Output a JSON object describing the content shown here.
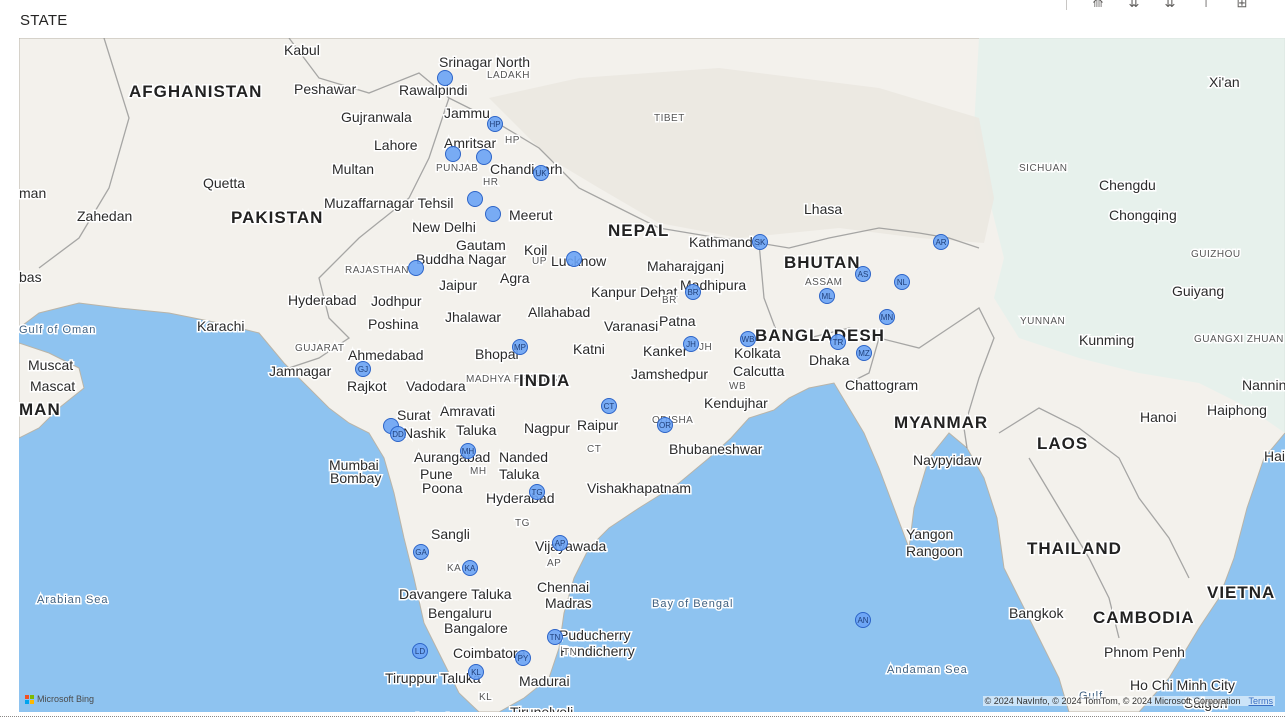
{
  "visual": {
    "title": "STATE"
  },
  "toolbar": {
    "icons": [
      "drill-up-icon",
      "drill-down-icon",
      "expand-all-icon",
      "pin-icon",
      "focus-mode-icon"
    ],
    "glyphs": [
      "⟰",
      "⇊",
      "⇊",
      "⊤",
      "⊞"
    ]
  },
  "map": {
    "water_color": "#8ec3f0",
    "land_color": "#f3f1ec",
    "marker_color": "#6aa3f5",
    "marker_stroke": "#2c64c8",
    "labels": [
      {
        "text": "Kabul",
        "kind": "city"
      },
      {
        "text": "Srinagar North",
        "kind": "city"
      },
      {
        "text": "LADAKH",
        "kind": "region"
      },
      {
        "text": "AFGHANISTAN",
        "kind": "country"
      },
      {
        "text": "Peshawar",
        "kind": "city"
      },
      {
        "text": "Rawalpindi",
        "kind": "city"
      },
      {
        "text": "Jammu",
        "kind": "city"
      },
      {
        "text": "Gujranwala",
        "kind": "city"
      },
      {
        "text": "Lahore",
        "kind": "city"
      },
      {
        "text": "Amritsar",
        "kind": "city"
      },
      {
        "text": "HP",
        "kind": "region"
      },
      {
        "text": "TIBET",
        "kind": "region"
      },
      {
        "text": "Xi'an",
        "kind": "city"
      },
      {
        "text": "Multan",
        "kind": "city"
      },
      {
        "text": "PUNJAB",
        "kind": "region"
      },
      {
        "text": "Chandigarh",
        "kind": "city"
      },
      {
        "text": "HR",
        "kind": "region"
      },
      {
        "text": "SICHUAN",
        "kind": "region"
      },
      {
        "text": "Chengdu",
        "kind": "city"
      },
      {
        "text": "man",
        "kind": "city"
      },
      {
        "text": "Quetta",
        "kind": "city"
      },
      {
        "text": "Muzaffarnagar Tehsil",
        "kind": "city"
      },
      {
        "text": "Lhasa",
        "kind": "city"
      },
      {
        "text": "Chongqing",
        "kind": "city"
      },
      {
        "text": "Zahedan",
        "kind": "city"
      },
      {
        "text": "PAKISTAN",
        "kind": "country"
      },
      {
        "text": "New Delhi",
        "kind": "city"
      },
      {
        "text": "Meerut",
        "kind": "city"
      },
      {
        "text": "NEPAL",
        "kind": "country"
      },
      {
        "text": "Kathmandu",
        "kind": "city"
      },
      {
        "text": "Gautam",
        "kind": "city"
      },
      {
        "text": "Koil",
        "kind": "city"
      },
      {
        "text": "Buddha Nagar",
        "kind": "city"
      },
      {
        "text": "UP",
        "kind": "region"
      },
      {
        "text": "Lucknow",
        "kind": "city"
      },
      {
        "text": "BHUTAN",
        "kind": "country"
      },
      {
        "text": "GUIZHOU",
        "kind": "region"
      },
      {
        "text": "bas",
        "kind": "city"
      },
      {
        "text": "RAJASTHAN",
        "kind": "region"
      },
      {
        "text": "Maharajganj",
        "kind": "city"
      },
      {
        "text": "Jaipur",
        "kind": "city"
      },
      {
        "text": "Agra",
        "kind": "city"
      },
      {
        "text": "Madhipura",
        "kind": "city"
      },
      {
        "text": "ASSAM",
        "kind": "region"
      },
      {
        "text": "Guiyang",
        "kind": "city"
      },
      {
        "text": "Hyderabad",
        "kind": "city"
      },
      {
        "text": "Jodhpur",
        "kind": "city"
      },
      {
        "text": "Kanpur Dehat",
        "kind": "city"
      },
      {
        "text": "BR",
        "kind": "region"
      },
      {
        "text": "Allahabad",
        "kind": "city"
      },
      {
        "text": "Gulf of Oman",
        "kind": "water"
      },
      {
        "text": "Karachi",
        "kind": "city"
      },
      {
        "text": "Poshina",
        "kind": "city"
      },
      {
        "text": "Jhalawar",
        "kind": "city"
      },
      {
        "text": "Varanasi",
        "kind": "city"
      },
      {
        "text": "Patna",
        "kind": "city"
      },
      {
        "text": "YUNNAN",
        "kind": "region"
      },
      {
        "text": "Kunming",
        "kind": "city"
      },
      {
        "text": "BANGLADESH",
        "kind": "country"
      },
      {
        "text": "GUANGXI ZHUAN",
        "kind": "region"
      },
      {
        "text": "GUJARAT",
        "kind": "region"
      },
      {
        "text": "Bhopal",
        "kind": "city"
      },
      {
        "text": "Katni",
        "kind": "city"
      },
      {
        "text": "Kanker",
        "kind": "city"
      },
      {
        "text": "JH",
        "kind": "region"
      },
      {
        "text": "Muscat",
        "kind": "city"
      },
      {
        "text": "Ahmedabad",
        "kind": "city"
      },
      {
        "text": "Dhaka",
        "kind": "city"
      },
      {
        "text": "Kolkata",
        "kind": "city"
      },
      {
        "text": "Calcutta",
        "kind": "city"
      },
      {
        "text": "Mascat",
        "kind": "city"
      },
      {
        "text": "Jamnagar",
        "kind": "city"
      },
      {
        "text": "MADHYA PRADESH",
        "kind": "region"
      },
      {
        "text": "INDIA",
        "kind": "country"
      },
      {
        "text": "Jamshedpur",
        "kind": "city"
      },
      {
        "text": "Nanning",
        "kind": "city"
      },
      {
        "text": "Rajkot",
        "kind": "city"
      },
      {
        "text": "Vadodara",
        "kind": "city"
      },
      {
        "text": "WB",
        "kind": "region"
      },
      {
        "text": "Chattogram",
        "kind": "city"
      },
      {
        "text": "MAN",
        "kind": "country"
      },
      {
        "text": "Kendujhar",
        "kind": "city"
      },
      {
        "text": "Hanoi",
        "kind": "city"
      },
      {
        "text": "Haiphong",
        "kind": "city"
      },
      {
        "text": "Surat",
        "kind": "city"
      },
      {
        "text": "Amravati",
        "kind": "city"
      },
      {
        "text": "Raipur",
        "kind": "city"
      },
      {
        "text": "MYANMAR",
        "kind": "country"
      },
      {
        "text": "LAOS",
        "kind": "country"
      },
      {
        "text": "Nashik",
        "kind": "city"
      },
      {
        "text": "Taluka",
        "kind": "city"
      },
      {
        "text": "Nagpur",
        "kind": "city"
      },
      {
        "text": "ODISHA",
        "kind": "region"
      },
      {
        "text": "Bhubaneshwar",
        "kind": "city"
      },
      {
        "text": "CT",
        "kind": "region"
      },
      {
        "text": "Haiko",
        "kind": "city"
      },
      {
        "text": "Aurangabad",
        "kind": "city"
      },
      {
        "text": "Nanded",
        "kind": "city"
      },
      {
        "text": "Naypyidaw",
        "kind": "city"
      },
      {
        "text": "Mumbai",
        "kind": "city"
      },
      {
        "text": "Bombay",
        "kind": "city"
      },
      {
        "text": "MH",
        "kind": "region"
      },
      {
        "text": "Taluka",
        "kind": "city"
      },
      {
        "text": "Pune",
        "kind": "city"
      },
      {
        "text": "Poona",
        "kind": "city"
      },
      {
        "text": "Vishakhapatnam",
        "kind": "city"
      },
      {
        "text": "Hyderabad",
        "kind": "city"
      },
      {
        "text": "TG",
        "kind": "region"
      },
      {
        "text": "Sangli",
        "kind": "city"
      },
      {
        "text": "Yangon",
        "kind": "city"
      },
      {
        "text": "Rangoon",
        "kind": "city"
      },
      {
        "text": "THAILAND",
        "kind": "country"
      },
      {
        "text": "Vijayawada",
        "kind": "city"
      },
      {
        "text": "AP",
        "kind": "region"
      },
      {
        "text": "KA",
        "kind": "region"
      },
      {
        "text": "VIETNA",
        "kind": "country"
      },
      {
        "text": "Chennai",
        "kind": "city"
      },
      {
        "text": "Madras",
        "kind": "city"
      },
      {
        "text": "Arabian Sea",
        "kind": "water"
      },
      {
        "text": "Davangere Taluka",
        "kind": "city"
      },
      {
        "text": "Bay of Bengal",
        "kind": "water"
      },
      {
        "text": "Bengaluru",
        "kind": "city"
      },
      {
        "text": "Bangkok",
        "kind": "city"
      },
      {
        "text": "CAMBODIA",
        "kind": "country"
      },
      {
        "text": "Bangalore",
        "kind": "city"
      },
      {
        "text": "Puducherry",
        "kind": "city"
      },
      {
        "text": "Pondicherry",
        "kind": "city"
      },
      {
        "text": "Coimbatore",
        "kind": "city"
      },
      {
        "text": "TN",
        "kind": "region"
      },
      {
        "text": "Phnom Penh",
        "kind": "city"
      },
      {
        "text": "Andaman Sea",
        "kind": "water"
      },
      {
        "text": "Tiruppur Taluka",
        "kind": "city"
      },
      {
        "text": "Madurai",
        "kind": "city"
      },
      {
        "text": "Ho Chi Minh City",
        "kind": "city"
      },
      {
        "text": "KL",
        "kind": "region"
      },
      {
        "text": "Gulf",
        "kind": "water"
      },
      {
        "text": "Saigon",
        "kind": "city"
      },
      {
        "text": "Trivandrum",
        "kind": "city"
      },
      {
        "text": "Tirunelveli",
        "kind": "city"
      }
    ],
    "markers": [
      {
        "code": ""
      },
      {
        "code": "HP"
      },
      {
        "code": ""
      },
      {
        "code": ""
      },
      {
        "code": "UK"
      },
      {
        "code": ""
      },
      {
        "code": ""
      },
      {
        "code": ""
      },
      {
        "code": ""
      },
      {
        "code": "BR"
      },
      {
        "code": "SK"
      },
      {
        "code": "AR"
      },
      {
        "code": "AS"
      },
      {
        "code": "NL"
      },
      {
        "code": "ML"
      },
      {
        "code": "MN"
      },
      {
        "code": "JH"
      },
      {
        "code": "WB"
      },
      {
        "code": "TR"
      },
      {
        "code": "MZ"
      },
      {
        "code": "MP"
      },
      {
        "code": "GJ"
      },
      {
        "code": "CT"
      },
      {
        "code": "OR"
      },
      {
        "code": ""
      },
      {
        "code": "DD"
      },
      {
        "code": "MH"
      },
      {
        "code": "TG"
      },
      {
        "code": "AP"
      },
      {
        "code": "GA"
      },
      {
        "code": "KA"
      },
      {
        "code": "TN"
      },
      {
        "code": "PY"
      },
      {
        "code": "LD"
      },
      {
        "code": "KL"
      },
      {
        "code": "AN"
      }
    ]
  },
  "attribution": {
    "logo": "Microsoft Bing",
    "copyright": "© 2024 NavInfo, © 2024 TomTom, © 2024 Microsoft Corporation",
    "terms": "Terms"
  }
}
